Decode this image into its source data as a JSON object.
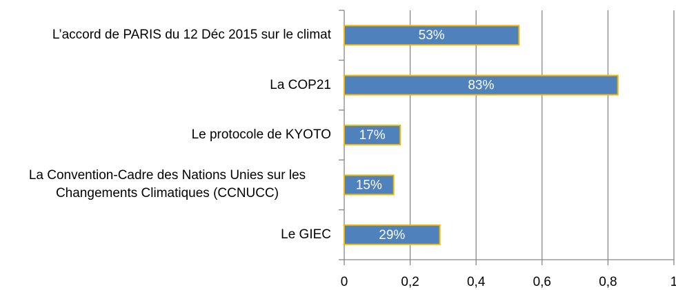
{
  "chart_data": {
    "type": "bar",
    "orientation": "horizontal",
    "categories": [
      "L’accord de PARIS du 12 Déc 2015 sur le climat",
      "La COP21",
      "Le protocole de KYOTO",
      "La Convention-Cadre des Nations Unies sur les Changements Climatiques (CCNUCC)",
      "Le GIEC"
    ],
    "values": [
      0.53,
      0.83,
      0.17,
      0.15,
      0.29
    ],
    "value_labels": [
      "53%",
      "83%",
      "17%",
      "15%",
      "29%"
    ],
    "color": "#4f81bd",
    "edge_color": "#f5b800",
    "xlim": [
      0,
      1
    ],
    "xticks": [
      0,
      {
        "value": 0.2,
        "label": "0,2"
      },
      {
        "value": 0.4,
        "label": "0,4"
      },
      {
        "value": 0.6,
        "label": "0,6"
      },
      {
        "value": 0.8,
        "label": "0,8"
      },
      1
    ],
    "grid": true
  }
}
